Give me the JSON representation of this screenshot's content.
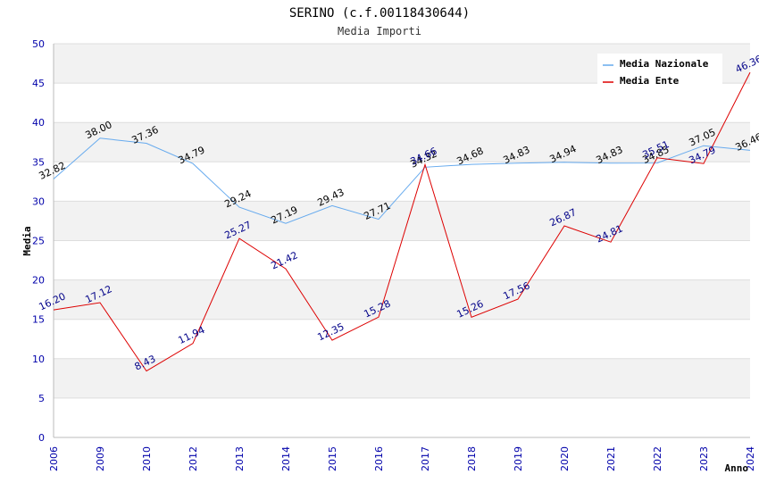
{
  "chart_data": {
    "type": "line",
    "title": "SERINO (c.f.00118430644)",
    "subtitle": "Media Importi",
    "xlabel": "Anno",
    "ylabel": "Media",
    "ylim": [
      0,
      50
    ],
    "yticks": [
      0,
      5,
      10,
      15,
      20,
      25,
      30,
      35,
      40,
      45,
      50
    ],
    "grid": true,
    "legend_position": "top-right",
    "categories": [
      "2006",
      "2009",
      "2010",
      "2012",
      "2013",
      "2014",
      "2015",
      "2016",
      "2017",
      "2018",
      "2019",
      "2020",
      "2021",
      "2022",
      "2023",
      "2024"
    ],
    "series": [
      {
        "name": "Media Nazionale",
        "color": "#66aaee",
        "values": [
          32.82,
          38.0,
          37.36,
          34.79,
          29.24,
          27.19,
          29.43,
          27.71,
          34.32,
          34.68,
          34.83,
          34.94,
          34.83,
          34.85,
          37.05,
          36.46
        ],
        "labels": [
          "32.82",
          "38.00",
          "37.36",
          "34.79",
          "29.24",
          "27.19",
          "29.43",
          "27.71",
          "34.32",
          "34.68",
          "34.83",
          "34.94",
          "34.83",
          "34.85",
          "37.05",
          "36.46"
        ]
      },
      {
        "name": "Media Ente",
        "color": "#dd0000",
        "values": [
          16.2,
          17.12,
          8.43,
          11.94,
          25.27,
          21.42,
          12.35,
          15.28,
          34.66,
          15.26,
          17.56,
          26.87,
          24.81,
          35.51,
          34.79,
          46.36
        ],
        "labels": [
          "16.20",
          "17.12",
          "8.43",
          "11.94",
          "25.27",
          "21.42",
          "12.35",
          "15.28",
          "34.66",
          "15.26",
          "17.56",
          "26.87",
          "24.81",
          "35.51",
          "34.79",
          "46.36"
        ]
      }
    ]
  }
}
